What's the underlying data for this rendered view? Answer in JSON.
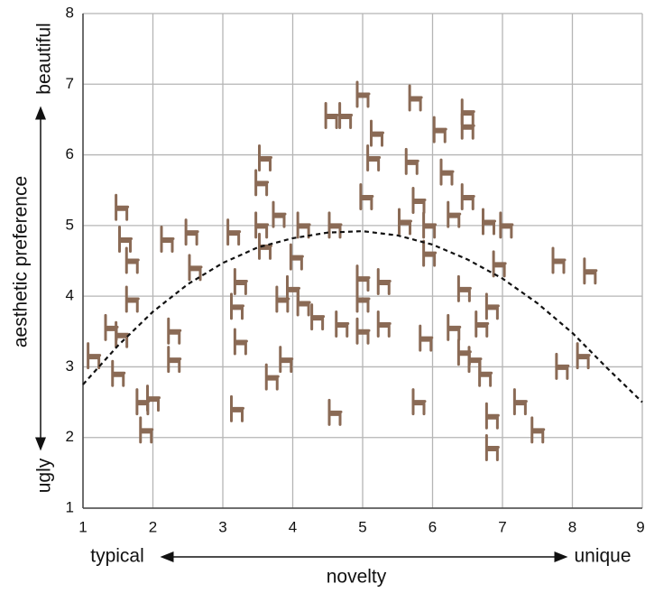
{
  "chart_data": {
    "type": "scatter",
    "y_label": "aesthetic preference",
    "x_label": "novelty",
    "y_high": "beautiful",
    "y_low": "ugly",
    "x_low": "typical",
    "x_high": "unique",
    "xlim": [
      1,
      9
    ],
    "ylim": [
      1,
      8
    ],
    "xticks": [
      1,
      2,
      3,
      4,
      5,
      6,
      7,
      8,
      9
    ],
    "yticks": [
      1,
      2,
      3,
      4,
      5,
      6,
      7,
      8
    ],
    "grid": true,
    "marker_color": "#8a6a55",
    "curve_color": "#111111",
    "curve_style": "dashed",
    "points": {
      "x": [
        1.55,
        1.6,
        1.7,
        1.7,
        1.4,
        1.55,
        1.15,
        1.5,
        1.85,
        2.0,
        1.9,
        2.2,
        2.55,
        2.6,
        2.3,
        2.3,
        3.15,
        3.25,
        3.2,
        3.25,
        3.2,
        3.6,
        3.55,
        3.55,
        3.8,
        3.6,
        3.7,
        3.9,
        3.85,
        4.15,
        4.05,
        4.0,
        4.15,
        4.35,
        4.6,
        4.55,
        4.75,
        5.0,
        5.2,
        5.15,
        5.0,
        5.0,
        5.0,
        4.7,
        4.6,
        5.3,
        5.3,
        5.6,
        5.75,
        5.7,
        5.8,
        5.95,
        5.95,
        5.9,
        5.8,
        5.05,
        6.1,
        6.2,
        6.3,
        6.5,
        6.5,
        6.5,
        6.3,
        6.45,
        6.45,
        6.6,
        6.7,
        6.95,
        6.85,
        6.8,
        7.05,
        6.85,
        6.85,
        7.25,
        7.5,
        7.85,
        8.15,
        8.25,
        7.8,
        6.75
      ],
      "y": [
        5.25,
        4.8,
        4.5,
        3.95,
        3.55,
        3.45,
        3.15,
        2.9,
        2.5,
        2.55,
        2.1,
        4.8,
        4.9,
        4.4,
        3.5,
        3.1,
        4.9,
        4.2,
        3.85,
        3.35,
        2.4,
        5.95,
        5.6,
        5.0,
        5.15,
        4.7,
        2.85,
        3.1,
        3.95,
        5.0,
        4.55,
        4.1,
        3.9,
        3.7,
        2.35,
        6.55,
        6.55,
        6.85,
        6.3,
        5.95,
        4.25,
        3.95,
        3.5,
        3.6,
        5.0,
        4.2,
        3.6,
        5.05,
        6.8,
        5.9,
        5.35,
        5.0,
        4.6,
        3.4,
        2.5,
        5.4,
        6.35,
        5.75,
        5.15,
        6.6,
        6.4,
        5.4,
        3.55,
        3.2,
        4.1,
        3.1,
        3.6,
        4.45,
        3.85,
        5.05,
        5.0,
        2.3,
        1.85,
        2.5,
        2.1,
        3.0,
        3.15,
        4.35,
        4.5,
        2.9
      ]
    },
    "curve": {
      "x": [
        1,
        1.5,
        2,
        2.5,
        3,
        3.5,
        4,
        4.5,
        5,
        5.5,
        6,
        6.5,
        7,
        7.5,
        8,
        8.5,
        9
      ],
      "y": [
        2.75,
        3.3,
        3.78,
        4.17,
        4.47,
        4.69,
        4.82,
        4.9,
        4.92,
        4.86,
        4.73,
        4.52,
        4.25,
        3.9,
        3.48,
        2.98,
        2.5
      ]
    }
  }
}
